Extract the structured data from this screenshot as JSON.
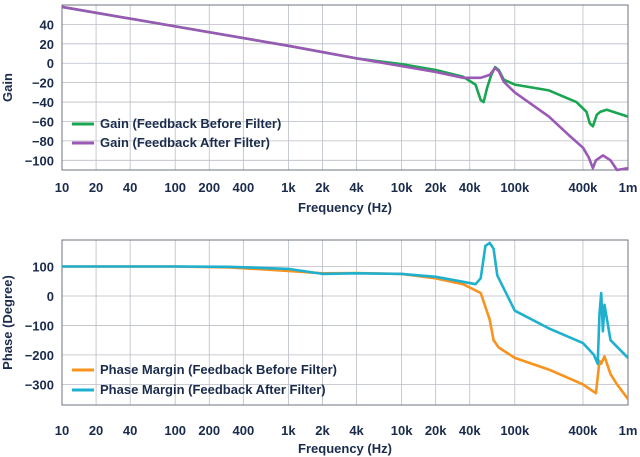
{
  "chart_data": [
    {
      "type": "line",
      "title": "",
      "xlabel": "Frequency (Hz)",
      "ylabel": "Gain",
      "xscale": "log",
      "xlim": [
        10,
        1000000
      ],
      "ylim": [
        -110,
        60
      ],
      "x_ticks": [
        10,
        20,
        40,
        100,
        200,
        400,
        1000,
        2000,
        4000,
        10000,
        20000,
        40000,
        100000,
        400000,
        1000000
      ],
      "x_tick_labels": [
        "10",
        "20",
        "40",
        "100",
        "200",
        "400",
        "1k",
        "2k",
        "4k",
        "10k",
        "20k",
        "40k",
        "100k",
        "400k",
        "1m"
      ],
      "y_ticks": [
        40,
        20,
        0,
        -20,
        -40,
        -60,
        -80,
        -100
      ],
      "y_tick_labels": [
        "40",
        "20",
        "0",
        "−20",
        "−40",
        "−60",
        "−80",
        "−100"
      ],
      "grid": true,
      "legend_position": "bottom-left",
      "series": [
        {
          "name": "Gain (Feedback Before Filter)",
          "color": "#1aa551",
          "points": [
            [
              10,
              58
            ],
            [
              100,
              38
            ],
            [
              1000,
              18
            ],
            [
              4000,
              5
            ],
            [
              10000,
              -1
            ],
            [
              20000,
              -7
            ],
            [
              35000,
              -14
            ],
            [
              45000,
              -22
            ],
            [
              50000,
              -38
            ],
            [
              53000,
              -40
            ],
            [
              57000,
              -25
            ],
            [
              62000,
              -12
            ],
            [
              67000,
              -4
            ],
            [
              72000,
              -7
            ],
            [
              80000,
              -17
            ],
            [
              100000,
              -22
            ],
            [
              200000,
              -28
            ],
            [
              350000,
              -40
            ],
            [
              430000,
              -50
            ],
            [
              460000,
              -62
            ],
            [
              490000,
              -65
            ],
            [
              530000,
              -53
            ],
            [
              570000,
              -50
            ],
            [
              650000,
              -48
            ],
            [
              1000000,
              -55
            ]
          ]
        },
        {
          "name": "Gain (Feedback After Filter)",
          "color": "#9b59b6",
          "points": [
            [
              10,
              58
            ],
            [
              100,
              38
            ],
            [
              1000,
              18
            ],
            [
              4000,
              5
            ],
            [
              10000,
              -3
            ],
            [
              20000,
              -9
            ],
            [
              35000,
              -15
            ],
            [
              50000,
              -15
            ],
            [
              60000,
              -12
            ],
            [
              67000,
              -5
            ],
            [
              72000,
              -8
            ],
            [
              80000,
              -19
            ],
            [
              100000,
              -30
            ],
            [
              200000,
              -55
            ],
            [
              300000,
              -74
            ],
            [
              400000,
              -87
            ],
            [
              450000,
              -97
            ],
            [
              490000,
              -108
            ],
            [
              520000,
              -100
            ],
            [
              600000,
              -95
            ],
            [
              700000,
              -100
            ],
            [
              800000,
              -110
            ],
            [
              1000000,
              -108
            ]
          ]
        }
      ]
    },
    {
      "type": "line",
      "title": "",
      "xlabel": "Frequency (Hz)",
      "ylabel": "Phase (Degree)",
      "xscale": "log",
      "xlim": [
        10,
        1000000
      ],
      "ylim": [
        -370,
        190
      ],
      "x_ticks": [
        10,
        20,
        40,
        100,
        200,
        400,
        1000,
        2000,
        4000,
        10000,
        20000,
        40000,
        100000,
        400000,
        1000000
      ],
      "x_tick_labels": [
        "10",
        "20",
        "40",
        "100",
        "200",
        "400",
        "1k",
        "2k",
        "4k",
        "10k",
        "20k",
        "40k",
        "100k",
        "400k",
        "1m"
      ],
      "y_ticks": [
        100,
        0,
        -100,
        -200,
        -300
      ],
      "y_tick_labels": [
        "100",
        "0",
        "−100",
        "−200",
        "−300"
      ],
      "grid": true,
      "legend_position": "bottom-left",
      "series": [
        {
          "name": "Phase Margin (Feedback Before Filter)",
          "color": "#f7931e",
          "points": [
            [
              10,
              100
            ],
            [
              100,
              100
            ],
            [
              300,
              97
            ],
            [
              1000,
              85
            ],
            [
              2000,
              77
            ],
            [
              4000,
              78
            ],
            [
              10000,
              75
            ],
            [
              20000,
              60
            ],
            [
              35000,
              40
            ],
            [
              50000,
              10
            ],
            [
              60000,
              -80
            ],
            [
              65000,
              -150
            ],
            [
              72000,
              -175
            ],
            [
              100000,
              -210
            ],
            [
              200000,
              -250
            ],
            [
              400000,
              -300
            ],
            [
              520000,
              -330
            ],
            [
              560000,
              -220
            ],
            [
              580000,
              -230
            ],
            [
              620000,
              -205
            ],
            [
              700000,
              -265
            ],
            [
              800000,
              -300
            ],
            [
              1000000,
              -350
            ]
          ]
        },
        {
          "name": "Phase Margin (Feedback After Filter)",
          "color": "#1fb0d0",
          "points": [
            [
              10,
              100
            ],
            [
              100,
              100
            ],
            [
              300,
              99
            ],
            [
              1000,
              92
            ],
            [
              2000,
              75
            ],
            [
              4000,
              77
            ],
            [
              10000,
              75
            ],
            [
              20000,
              65
            ],
            [
              35000,
              48
            ],
            [
              45000,
              40
            ],
            [
              50000,
              60
            ],
            [
              55000,
              170
            ],
            [
              60000,
              180
            ],
            [
              65000,
              160
            ],
            [
              70000,
              70
            ],
            [
              100000,
              -50
            ],
            [
              200000,
              -110
            ],
            [
              400000,
              -160
            ],
            [
              500000,
              -200
            ],
            [
              540000,
              -230
            ],
            [
              560000,
              -60
            ],
            [
              580000,
              10
            ],
            [
              600000,
              -120
            ],
            [
              620000,
              -30
            ],
            [
              700000,
              -150
            ],
            [
              1000000,
              -210
            ]
          ]
        }
      ]
    }
  ]
}
